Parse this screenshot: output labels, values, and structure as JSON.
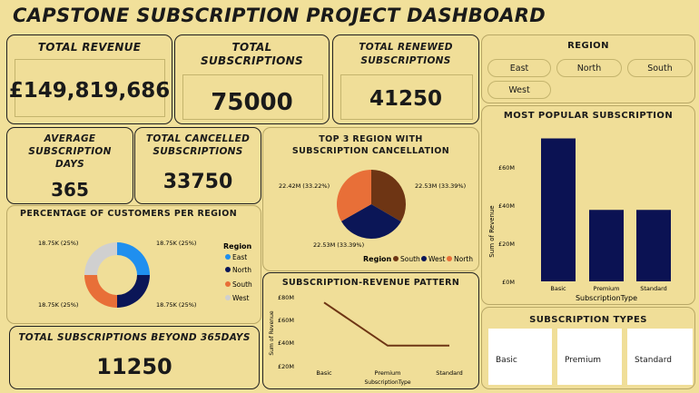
{
  "header": {
    "title": "CAPSTONE SUBSCRIPTION PROJECT DASHBOARD"
  },
  "kpis": {
    "total_revenue": {
      "label": "TOTAL REVENUE",
      "value": "£149,819,686"
    },
    "total_subscriptions": {
      "label": "TOTAL SUBSCRIPTIONS",
      "value": "75000"
    },
    "total_renewed": {
      "label": "TOTAL RENEWED SUBSCRIPTIONS",
      "value": "41250"
    },
    "avg_days": {
      "label": "AVERAGE SUBSCRIPTION DAYS",
      "value": "365"
    },
    "total_cancelled": {
      "label": "TOTAL CANCELLED SUBSCRIPTIONS",
      "value": "33750"
    },
    "beyond_365": {
      "label": "TOTAL SUBSCRIPTIONS BEYOND 365DAYS",
      "value": "11250"
    }
  },
  "region_slicer": {
    "title": "REGION",
    "options": [
      "East",
      "North",
      "South",
      "West"
    ]
  },
  "subscription_types": {
    "title": "SUBSCRIPTION TYPES",
    "options": [
      "Basic",
      "Premium",
      "Standard"
    ]
  },
  "colors": {
    "east": "#1f8fef",
    "north": "#0b1657",
    "south": "#e86f38",
    "west": "#d0d0d0",
    "south_pie": "#6e3514",
    "bar": "#0b1253",
    "line": "#6e3514"
  },
  "chart_data": [
    {
      "id": "customers-per-region",
      "type": "pie",
      "title": "PERCENTAGE OF CUSTOMERS PER REGION",
      "legend_title": "Region",
      "labels": [
        "East",
        "North",
        "South",
        "West"
      ],
      "values": [
        18750,
        18750,
        18750,
        18750
      ],
      "data_labels": [
        "18.75K (25%)",
        "18.75K (25%)",
        "18.75K (25%)",
        "18.75K (25%)"
      ],
      "legend_placement": "right"
    },
    {
      "id": "top3-cancellation",
      "type": "pie",
      "title": "TOP 3 REGION WITH SUBSCRIPTION CANCELLATION",
      "legend_title": "Region",
      "labels": [
        "South",
        "West",
        "North"
      ],
      "values": [
        22.53,
        22.53,
        22.42
      ],
      "data_labels": [
        "22.53M (33.39%)",
        "22.53M (33.39%)",
        "22.42M (33.22%)"
      ],
      "legend_placement": "bottom"
    },
    {
      "id": "most-popular",
      "type": "bar",
      "title": "MOST POPULAR SUBSCRIPTION",
      "categories": [
        "Basic",
        "Premium",
        "Standard"
      ],
      "values": [
        75,
        37.5,
        37.5
      ],
      "xlabel": "SubscriptionType",
      "ylabel": "Sum of Revenue",
      "yticks": [
        "£0M",
        "£20M",
        "£40M",
        "£60M"
      ],
      "ylim": [
        0,
        80
      ]
    },
    {
      "id": "revenue-pattern",
      "type": "line",
      "title": "SUBSCRIPTION-REVENUE PATTERN",
      "categories": [
        "Basic",
        "Premium",
        "Standard"
      ],
      "values": [
        75,
        37.5,
        37.5
      ],
      "xlabel": "SubscriptionType",
      "ylabel": "Sum of Revenue",
      "yticks": [
        "£20M",
        "£40M",
        "£60M",
        "£80M"
      ],
      "ylim": [
        20,
        80
      ]
    }
  ]
}
